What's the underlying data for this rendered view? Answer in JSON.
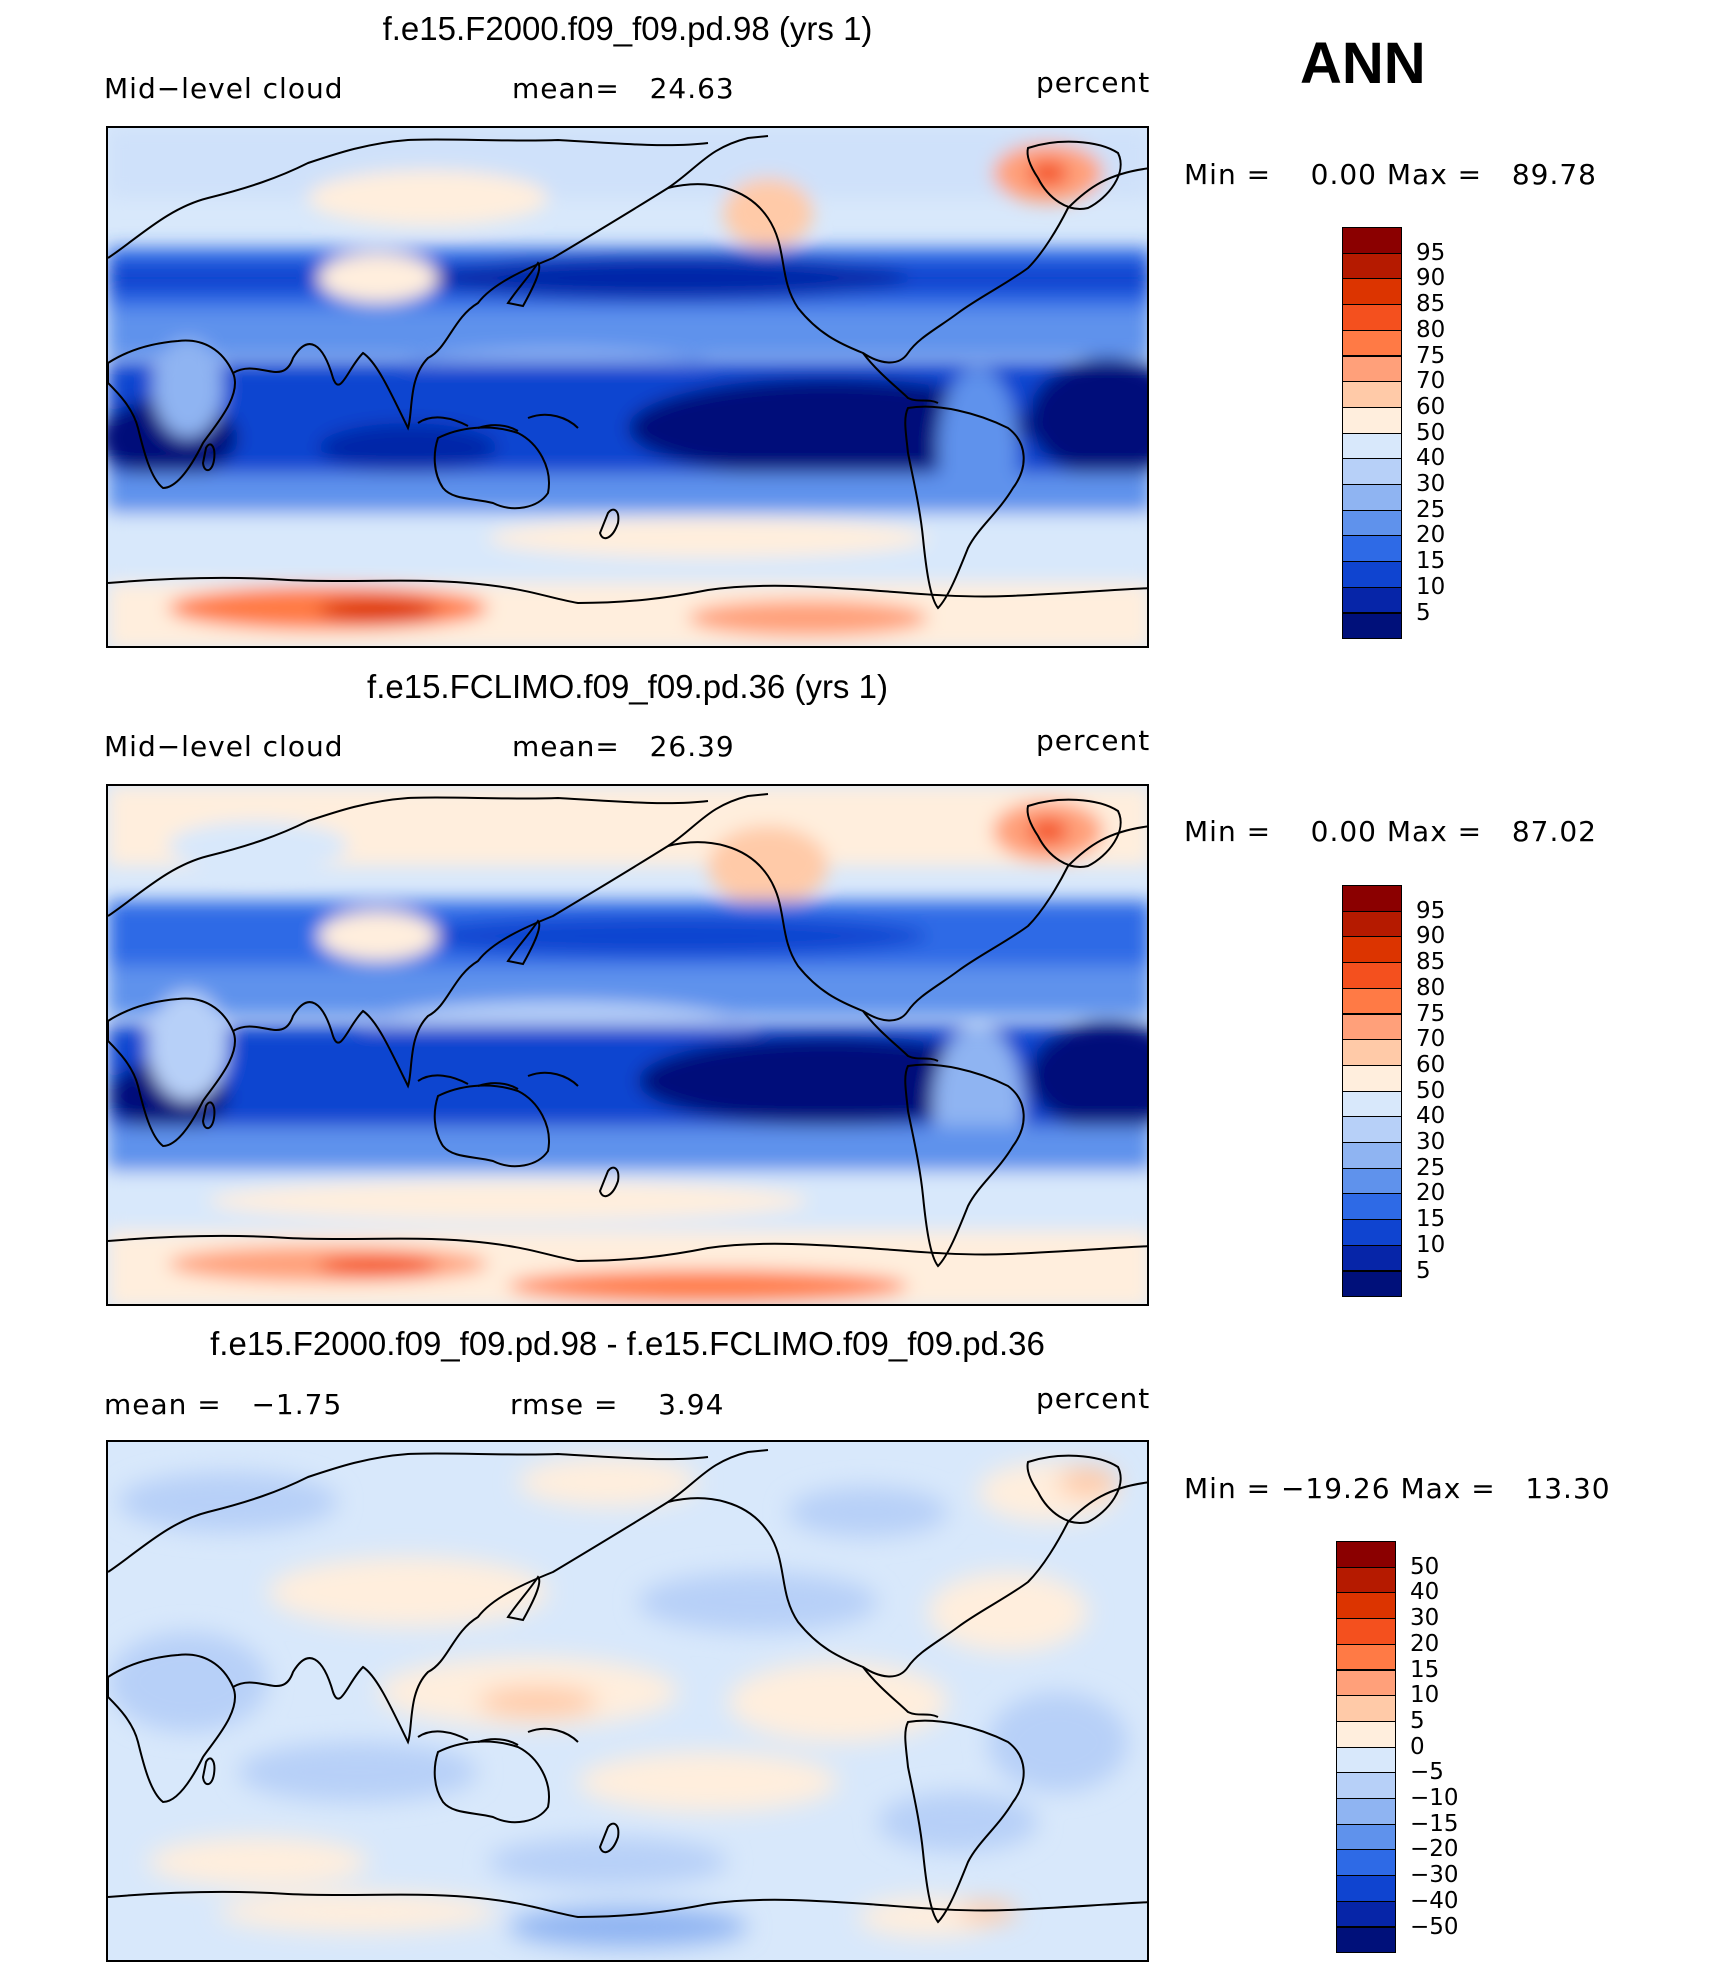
{
  "season_label": "ANN",
  "panels": [
    {
      "title": "f.e15.F2000.f09_f09.pd.98 (yrs 1)",
      "left_label": "Mid−level cloud",
      "center_label": "mean=   24.63",
      "right_label": "percent",
      "minmax": "Min =    0.00 Max =   89.78",
      "colorbar": {
        "levels": [
          "95",
          "90",
          "85",
          "80",
          "75",
          "70",
          "60",
          "50",
          "40",
          "30",
          "25",
          "20",
          "15",
          "10",
          "5"
        ],
        "colors": [
          "#8b0000",
          "#b51a00",
          "#dc3400",
          "#f4501e",
          "#ff7a45",
          "#ffa07a",
          "#ffcaa8",
          "#ffeedd",
          "#d8e8fb",
          "#b7d0f8",
          "#8fb4f2",
          "#5f92ec",
          "#2e6ae6",
          "#0f44d0",
          "#0625a8",
          "#00107a"
        ]
      }
    },
    {
      "title": "f.e15.FCLIMO.f09_f09.pd.36 (yrs 1)",
      "left_label": "Mid−level cloud",
      "center_label": "mean=   26.39",
      "right_label": "percent",
      "minmax": "Min =    0.00 Max =   87.02",
      "colorbar": {
        "levels": [
          "95",
          "90",
          "85",
          "80",
          "75",
          "70",
          "60",
          "50",
          "40",
          "30",
          "25",
          "20",
          "15",
          "10",
          "5"
        ],
        "colors": [
          "#8b0000",
          "#b51a00",
          "#dc3400",
          "#f4501e",
          "#ff7a45",
          "#ffa07a",
          "#ffcaa8",
          "#ffeedd",
          "#d8e8fb",
          "#b7d0f8",
          "#8fb4f2",
          "#5f92ec",
          "#2e6ae6",
          "#0f44d0",
          "#0625a8",
          "#00107a"
        ]
      }
    },
    {
      "title": "f.e15.F2000.f09_f09.pd.98 - f.e15.FCLIMO.f09_f09.pd.36",
      "left_label": "mean =   −1.75",
      "center_label": "rmse =    3.94",
      "right_label": "percent",
      "minmax": "Min = −19.26 Max =   13.30",
      "colorbar": {
        "levels": [
          "50",
          "40",
          "30",
          "20",
          "15",
          "10",
          "5",
          "0",
          "−5",
          "−10",
          "−15",
          "−20",
          "−30",
          "−40",
          "−50"
        ],
        "colors": [
          "#8b0000",
          "#b51a00",
          "#dc3400",
          "#f4501e",
          "#ff7a45",
          "#ffa07a",
          "#ffcaa8",
          "#ffeedd",
          "#d8e8fb",
          "#b7d0f8",
          "#8fb4f2",
          "#5f92ec",
          "#2e6ae6",
          "#0f44d0",
          "#0625a8",
          "#00107a"
        ]
      }
    }
  ]
}
